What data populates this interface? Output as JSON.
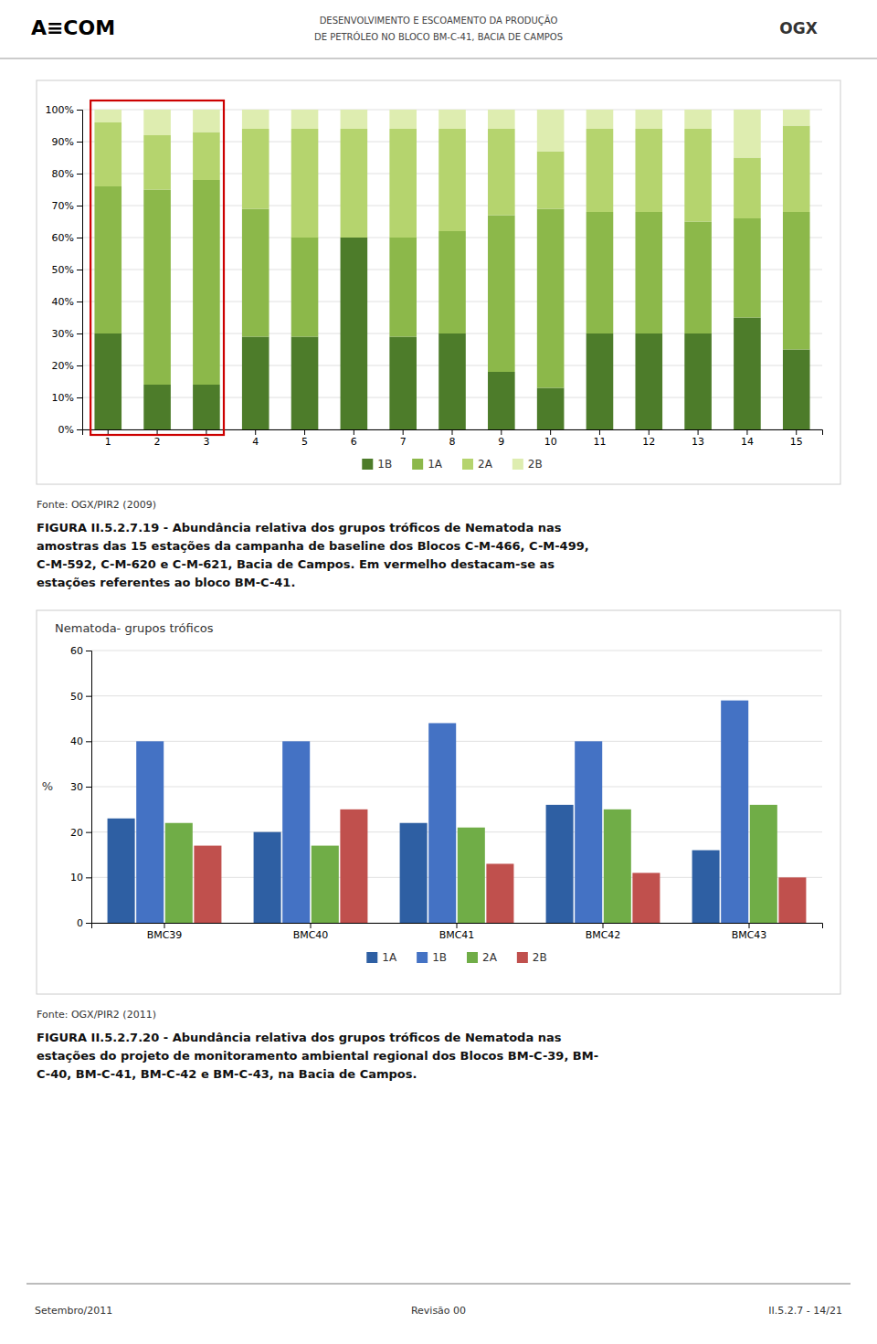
{
  "header": {
    "logo_left": "A≡COM",
    "title_lines": [
      "DESENVOLVIMENTO E ESCOAMENTO DA PRODUÇÃO",
      "DE PETRÓLEO NO BLOCO BM-C-41, BACIA DE CAMPOS"
    ],
    "logo_right": "OGX"
  },
  "chart_data": [
    {
      "type": "bar",
      "stacked": true,
      "categories": [
        "1",
        "2",
        "3",
        "4",
        "5",
        "6",
        "7",
        "8",
        "9",
        "10",
        "11",
        "12",
        "13",
        "14",
        "15"
      ],
      "series": [
        {
          "name": "1B",
          "color": "#4d7c2a",
          "values": [
            0.3,
            0.14,
            0.14,
            0.29,
            0.29,
            0.6,
            0.29,
            0.3,
            0.18,
            0.13,
            0.3,
            0.3,
            0.3,
            0.35,
            0.25
          ]
        },
        {
          "name": "1A",
          "color": "#8cb84a",
          "values": [
            0.46,
            0.61,
            0.64,
            0.4,
            0.31,
            0.0,
            0.31,
            0.32,
            0.49,
            0.56,
            0.38,
            0.38,
            0.35,
            0.31,
            0.43
          ]
        },
        {
          "name": "2A",
          "color": "#b5d46e",
          "values": [
            0.2,
            0.17,
            0.15,
            0.25,
            0.34,
            0.34,
            0.34,
            0.32,
            0.27,
            0.18,
            0.26,
            0.26,
            0.29,
            0.19,
            0.27
          ]
        },
        {
          "name": "2B",
          "color": "#deedb0",
          "values": [
            0.04,
            0.08,
            0.07,
            0.06,
            0.06,
            0.06,
            0.06,
            0.06,
            0.06,
            0.13,
            0.06,
            0.06,
            0.06,
            0.15,
            0.05
          ]
        }
      ],
      "ylim": [
        0,
        1.0
      ],
      "yticks": [
        {
          "value": 0.0,
          "label": "0%"
        },
        {
          "value": 0.1,
          "label": "10%"
        },
        {
          "value": 0.2,
          "label": "20%"
        },
        {
          "value": 0.3,
          "label": "30%"
        },
        {
          "value": 0.4,
          "label": "40%"
        },
        {
          "value": 0.5,
          "label": "50%"
        },
        {
          "value": 0.6,
          "label": "60%"
        },
        {
          "value": 0.7,
          "label": "70%"
        },
        {
          "value": 0.8,
          "label": "80%"
        },
        {
          "value": 0.9,
          "label": "90%"
        },
        {
          "value": 1.0,
          "label": "100%"
        }
      ],
      "grid": true,
      "legend": "bottom",
      "highlight": {
        "categories": [
          "1",
          "2",
          "3"
        ],
        "color": "#cc0000"
      },
      "annotations": [
        {
          "text": "Fonte: OGX/PIR2 (2009)"
        },
        {
          "text": "FIGURA  II.5.2.7.19  -  Abundância relativa dos grupos tróficos de Nematoda nas"
        },
        {
          "text": "amostras das 15 estações da campanha de baseline dos Blocos C-M-466, C-M-499,"
        },
        {
          "text": "C-M-592, C-M-620 e C-M-621, Bacia de Campos. Em vermelho destacam-se as"
        },
        {
          "text": "estações referentes ao bloco BM-C-41."
        }
      ]
    },
    {
      "type": "bar",
      "title": "Nematoda- grupos tróficos",
      "ylabel": "%",
      "categories": [
        "BMC39",
        "BMC40",
        "BMC41",
        "BMC42",
        "BMC43"
      ],
      "series": [
        {
          "name": "1A",
          "color": "#2e5fa3",
          "values": [
            23,
            20,
            22,
            26,
            16
          ]
        },
        {
          "name": "1B",
          "color": "#4472c4",
          "values": [
            40,
            40,
            44,
            40,
            49
          ]
        },
        {
          "name": "2A",
          "color": "#70ad47",
          "values": [
            22,
            17,
            21,
            25,
            26
          ]
        },
        {
          "name": "2B",
          "color": "#c0504d",
          "values": [
            17,
            25,
            13,
            11,
            10
          ]
        }
      ],
      "ylim": [
        0,
        60
      ],
      "yticks": [
        0,
        10,
        20,
        30,
        40,
        50,
        60
      ],
      "grid": true,
      "legend": "bottom",
      "annotations": [
        {
          "text": "Fonte: OGX/PIR2 (2011)"
        },
        {
          "text": "FIGURA  II.5.2.7.20  -  Abundância relativa dos grupos tróficos de Nematoda nas"
        },
        {
          "text": "estações do projeto de monitoramento ambiental regional dos Blocos BM-C-39, BM-"
        },
        {
          "text": "C-40, BM-C-41, BM-C-42 e BM-C-43, na Bacia de Campos."
        }
      ]
    }
  ],
  "footer": {
    "left": "Setembro/2011",
    "center": "Revisão 00",
    "right": "II.5.2.7 - 14/21"
  }
}
